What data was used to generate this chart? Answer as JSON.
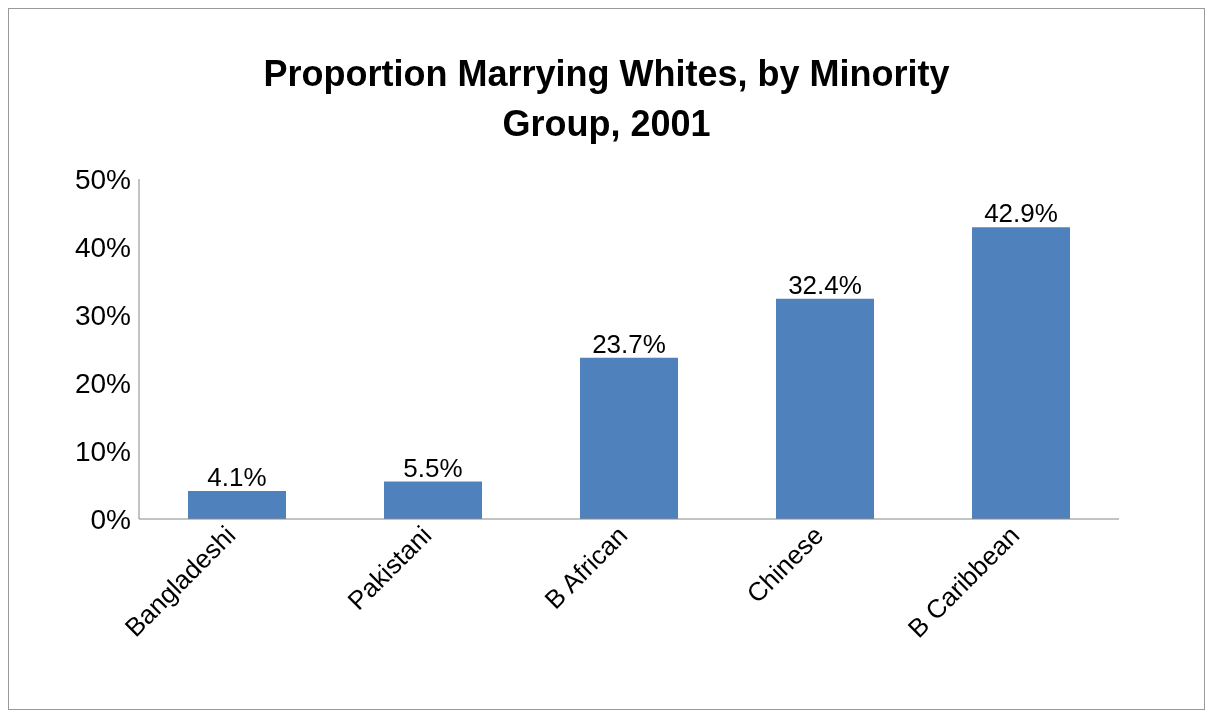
{
  "chart_data": {
    "type": "bar",
    "title": "Proportion Marrying Whites, by Minority Group, 2001",
    "categories": [
      "Bangladeshi",
      "Pakistani",
      "B African",
      "Chinese",
      "B Caribbean"
    ],
    "values": [
      4.1,
      5.5,
      23.7,
      32.4,
      42.9
    ],
    "color": "#4f81bd",
    "value_labels": [
      "4.1%",
      "5.5%",
      "23.7%",
      "32.4%",
      "42.9%"
    ],
    "ylim": [
      0,
      50
    ],
    "yticks": [
      {
        "value": 0,
        "label": "0%"
      },
      {
        "value": 10,
        "label": "10%"
      },
      {
        "value": 20,
        "label": "20%"
      },
      {
        "value": 30,
        "label": "30%"
      },
      {
        "value": 40,
        "label": "40%"
      },
      {
        "value": 50,
        "label": "50%"
      }
    ],
    "grid": false
  }
}
